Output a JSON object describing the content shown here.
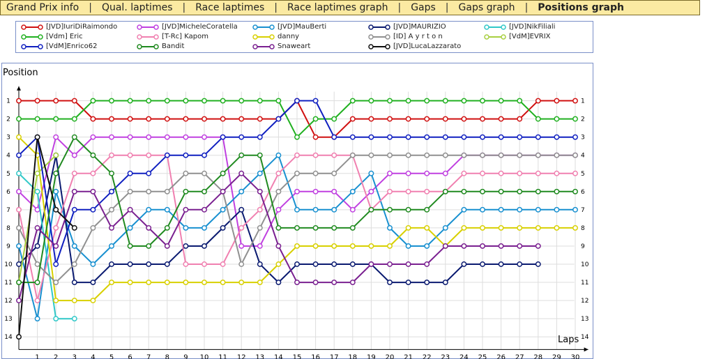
{
  "tabs": [
    {
      "label": "Grand Prix info",
      "active": false
    },
    {
      "label": "Qual. laptimes",
      "active": false
    },
    {
      "label": "Race laptimes",
      "active": false
    },
    {
      "label": "Race laptimes graph",
      "active": false
    },
    {
      "label": "Gaps",
      "active": false
    },
    {
      "label": "Gaps graph",
      "active": false
    },
    {
      "label": "Positions graph",
      "active": true
    }
  ],
  "tab_separator": "|",
  "chart_data": {
    "type": "line",
    "xlabel": "Laps",
    "ylabel": "Position",
    "xlim": [
      0,
      31
    ],
    "ylim": [
      0,
      15
    ],
    "y_inverted": true,
    "x_ticks": [
      1,
      2,
      3,
      4,
      5,
      6,
      7,
      8,
      9,
      10,
      11,
      12,
      13,
      14,
      15,
      16,
      17,
      18,
      19,
      20,
      21,
      22,
      23,
      24,
      25,
      26,
      27,
      28,
      29,
      30
    ],
    "y_ticks": [
      1,
      2,
      3,
      4,
      5,
      6,
      7,
      8,
      9,
      10,
      11,
      12,
      13,
      14
    ],
    "grid": true,
    "legend_position": "top",
    "series": [
      {
        "name": "[JVD]IuriDiRaimondo",
        "color": "#d01010",
        "x": [
          0,
          1,
          2,
          3,
          4,
          5,
          6,
          7,
          8,
          9,
          10,
          11,
          12,
          13,
          14,
          15,
          16,
          17,
          18,
          19,
          20,
          21,
          22,
          23,
          24,
          25,
          26,
          27,
          28,
          29,
          30
        ],
        "values": [
          1,
          1,
          1,
          1,
          2,
          2,
          2,
          2,
          2,
          2,
          2,
          2,
          2,
          2,
          2,
          1,
          3,
          3,
          2,
          2,
          2,
          2,
          2,
          2,
          2,
          2,
          2,
          2,
          1,
          1,
          1
        ]
      },
      {
        "name": "[JVD]MicheleCoratella",
        "color": "#c040e0",
        "x": [
          0,
          1,
          2,
          3,
          4,
          5,
          6,
          7,
          8,
          9,
          10,
          11,
          12,
          13,
          14,
          15,
          16,
          17,
          18,
          19,
          20,
          21,
          22,
          23,
          24,
          25,
          26,
          27,
          28,
          29,
          30
        ],
        "values": [
          6,
          7,
          3,
          4,
          3,
          3,
          3,
          3,
          3,
          3,
          3,
          3,
          9,
          9,
          7,
          6,
          6,
          6,
          7,
          6,
          5,
          5,
          5,
          5,
          4,
          4,
          4,
          4,
          4,
          4,
          4
        ]
      },
      {
        "name": "[JVD]MauBerti",
        "color": "#1890d0",
        "x": [
          0,
          1,
          2,
          3,
          4,
          5,
          6,
          7,
          8,
          9,
          10,
          11,
          12,
          13,
          14,
          15,
          16,
          17,
          18,
          19,
          20,
          21,
          22,
          23,
          24,
          25,
          26,
          27,
          28,
          29,
          30
        ],
        "values": [
          9,
          13,
          6,
          9,
          10,
          9,
          8,
          7,
          7,
          8,
          8,
          7,
          6,
          5,
          4,
          7,
          7,
          7,
          6,
          5,
          8,
          9,
          9,
          8,
          7,
          7,
          7,
          7,
          7,
          7,
          7
        ]
      },
      {
        "name": "[JVD]MAURIZIO",
        "color": "#0a1a70",
        "x": [
          0,
          1,
          2,
          3,
          4,
          5,
          6,
          7,
          8,
          9,
          10,
          11,
          12,
          13,
          14,
          15,
          16,
          17,
          18,
          19,
          20,
          21,
          22,
          23,
          24,
          25,
          26,
          27,
          28
        ],
        "values": [
          10,
          9,
          4,
          11,
          11,
          10,
          10,
          10,
          10,
          9,
          9,
          8,
          7,
          10,
          11,
          10,
          10,
          10,
          10,
          10,
          11,
          11,
          11,
          11,
          10,
          10,
          10,
          10,
          10
        ]
      },
      {
        "name": "[JVD]NikFiliali",
        "color": "#30c8c8",
        "x": [
          0,
          1,
          2,
          3
        ],
        "values": [
          5,
          6,
          13,
          13
        ]
      },
      {
        "name": "[Vdm] Eric",
        "color": "#20b020",
        "x": [
          0,
          1,
          2,
          3,
          4,
          5,
          6,
          7,
          8,
          9,
          10,
          11,
          12,
          13,
          14,
          15,
          16,
          17,
          18,
          19,
          20,
          21,
          22,
          23,
          24,
          25,
          26,
          27,
          28,
          29,
          30
        ],
        "values": [
          2,
          2,
          2,
          2,
          1,
          1,
          1,
          1,
          1,
          1,
          1,
          1,
          1,
          1,
          1,
          3,
          2,
          2,
          1,
          1,
          1,
          1,
          1,
          1,
          1,
          1,
          1,
          1,
          2,
          2,
          2
        ]
      },
      {
        "name": "[T-Rc] Kapom",
        "color": "#f080b0",
        "x": [
          0,
          1,
          2,
          3,
          4,
          5,
          6,
          7,
          8,
          9,
          10,
          11,
          12,
          13,
          14,
          15,
          16,
          17,
          18,
          19,
          20,
          21,
          22,
          23,
          24,
          25,
          26,
          27,
          28,
          29,
          30
        ],
        "values": [
          7,
          12,
          8,
          5,
          5,
          4,
          4,
          4,
          4,
          10,
          10,
          10,
          8,
          7,
          5,
          4,
          4,
          4,
          4,
          7,
          6,
          6,
          6,
          6,
          5,
          5,
          5,
          5,
          5,
          5,
          5
        ]
      },
      {
        "name": "danny",
        "color": "#d8d000",
        "x": [
          0,
          1,
          2,
          3,
          4,
          5,
          6,
          7,
          8,
          9,
          10,
          11,
          12,
          13,
          14,
          15,
          16,
          17,
          18,
          19,
          20,
          21,
          22,
          23,
          24,
          25,
          26,
          27,
          28,
          29,
          30
        ],
        "values": [
          3,
          4,
          12,
          12,
          12,
          11,
          11,
          11,
          11,
          11,
          11,
          11,
          11,
          11,
          10,
          9,
          9,
          9,
          9,
          9,
          9,
          8,
          8,
          9,
          8,
          8,
          8,
          8,
          8,
          8,
          8
        ]
      },
      {
        "name": "[ID] A y r t o n",
        "color": "#909090",
        "x": [
          0,
          1,
          2,
          3,
          4,
          5,
          6,
          7,
          8,
          9,
          10,
          11,
          12,
          13,
          14,
          15,
          16,
          17,
          18,
          19,
          20,
          21,
          22,
          23,
          24,
          25,
          26,
          27,
          28,
          29,
          30
        ],
        "values": [
          8,
          10,
          11,
          10,
          8,
          7,
          6,
          6,
          6,
          5,
          5,
          6,
          10,
          8,
          6,
          5,
          5,
          5,
          4,
          4,
          4,
          4,
          4,
          4,
          4,
          4,
          4,
          4,
          4,
          4,
          4
        ]
      },
      {
        "name": "[VdM]EVRIX",
        "color": "#a8d040",
        "x": [
          0,
          1,
          2
        ],
        "values": [
          11,
          5,
          4
        ]
      },
      {
        "name": "[VdM]Enrico62",
        "color": "#1020c0",
        "x": [
          0,
          1,
          2,
          3,
          4,
          5,
          6,
          7,
          8,
          9,
          10,
          11,
          12,
          13,
          14,
          15,
          16,
          17,
          18,
          19,
          20,
          21,
          22,
          23,
          24,
          25,
          26,
          27,
          28,
          29,
          30
        ],
        "values": [
          4,
          3,
          10,
          7,
          7,
          6,
          5,
          5,
          4,
          4,
          4,
          3,
          3,
          3,
          2,
          1,
          1,
          3,
          3,
          3,
          3,
          3,
          3,
          3,
          3,
          3,
          3,
          3,
          3,
          3,
          3
        ]
      },
      {
        "name": "Bandit",
        "color": "#208a20",
        "x": [
          0,
          1,
          2,
          3,
          4,
          5,
          6,
          7,
          8,
          9,
          10,
          11,
          12,
          13,
          14,
          15,
          16,
          17,
          18,
          19,
          20,
          21,
          22,
          23,
          24,
          25,
          26,
          27,
          28,
          29,
          30
        ],
        "values": [
          11,
          11,
          5,
          3,
          4,
          5,
          9,
          9,
          8,
          6,
          6,
          5,
          4,
          4,
          8,
          8,
          8,
          8,
          8,
          7,
          7,
          7,
          7,
          6,
          6,
          6,
          6,
          6,
          6,
          6,
          6
        ]
      },
      {
        "name": "Snaweart",
        "color": "#7a2090",
        "x": [
          0,
          1,
          2,
          3,
          4,
          5,
          6,
          7,
          8,
          9,
          10,
          11,
          12,
          13,
          14,
          15,
          16,
          17,
          18,
          19,
          20,
          21,
          22,
          23,
          24,
          25,
          26,
          27,
          28
        ],
        "values": [
          12,
          8,
          9,
          6,
          6,
          8,
          7,
          8,
          9,
          7,
          7,
          6,
          5,
          6,
          9,
          11,
          11,
          11,
          11,
          10,
          10,
          10,
          10,
          9,
          9,
          9,
          9,
          9,
          9
        ]
      },
      {
        "name": "[JVD]LucaLazzarato",
        "color": "#101010",
        "x": [
          0,
          1,
          2,
          3
        ],
        "values": [
          14,
          3,
          7,
          8
        ]
      }
    ]
  }
}
